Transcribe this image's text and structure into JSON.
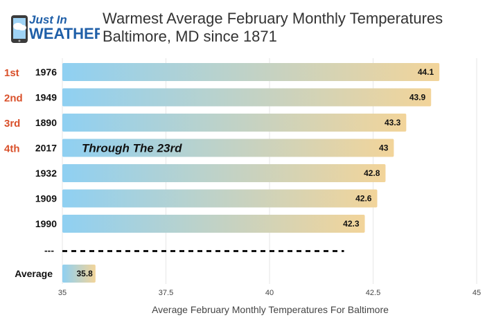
{
  "logo": {
    "line1": "Just In",
    "line2": "WEATHER"
  },
  "chart_data": {
    "type": "bar",
    "orientation": "horizontal",
    "title": "Warmest Average February Monthly Temperatures",
    "subtitle": "Baltimore, MD since 1871",
    "xlabel": "Average February Monthly Temperatures For Baltimore",
    "xlim": [
      35,
      45
    ],
    "xticks": [
      "35",
      "37.5",
      "40",
      "42.5",
      "45"
    ],
    "grid": true,
    "bars": [
      {
        "rank": "1st",
        "category": "1976",
        "value": 44.1,
        "value_label": "44.1"
      },
      {
        "rank": "2nd",
        "category": "1949",
        "value": 43.9,
        "value_label": "43.9"
      },
      {
        "rank": "3rd",
        "category": "1890",
        "value": 43.3,
        "value_label": "43.3"
      },
      {
        "rank": "4th",
        "category": "2017",
        "value": 43,
        "value_label": "43"
      },
      {
        "rank": "",
        "category": "1932",
        "value": 42.8,
        "value_label": "42.8"
      },
      {
        "rank": "",
        "category": "1909",
        "value": 42.6,
        "value_label": "42.6"
      },
      {
        "rank": "",
        "category": "1990",
        "value": 42.3,
        "value_label": "42.3"
      }
    ],
    "separator": {
      "category": "---",
      "extends_to": 42.3
    },
    "average": {
      "category": "Average",
      "value": 35.8,
      "value_label": "35.8"
    },
    "annotation": {
      "text": "Through The 23rd",
      "bar_index": 3
    },
    "colors": {
      "gradient_start": "#8fd0f2",
      "gradient_end": "#f2d49a",
      "grid": "#e6e6e6",
      "rank": "#d9502a",
      "logo_blue": "#1f5fa8"
    }
  }
}
